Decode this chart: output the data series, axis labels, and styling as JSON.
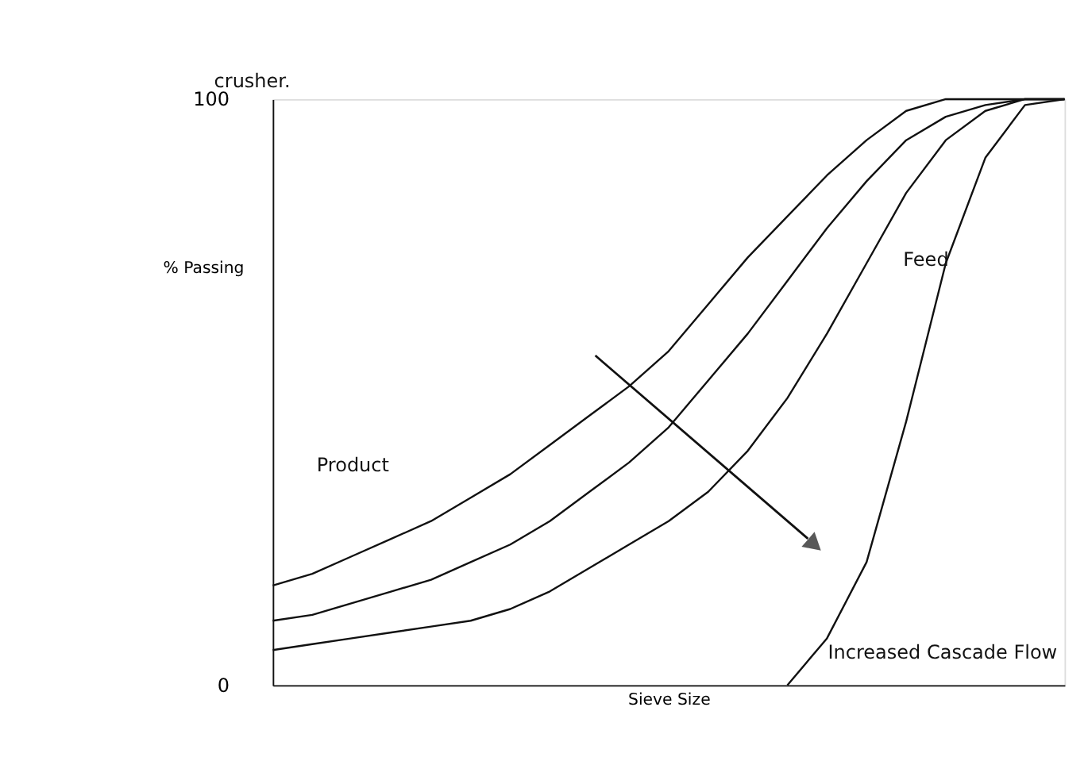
{
  "chart_data": {
    "type": "line",
    "xlabel": "Sieve Size",
    "ylabel": "% Passing",
    "categories": [
      null,
      null,
      null,
      null,
      null,
      null,
      null,
      null,
      null,
      null,
      null,
      null,
      null,
      null,
      null,
      null,
      null,
      null,
      null,
      null,
      null
    ],
    "series": [
      {
        "color": "#111111",
        "values": [
          17,
          19,
          22,
          25,
          28,
          32,
          36,
          41,
          46,
          51,
          57,
          65,
          73,
          80,
          87,
          93,
          98,
          100,
          100,
          100,
          100
        ]
      },
      {
        "color": "#111111",
        "values": [
          11,
          12,
          14,
          16,
          18,
          21,
          24,
          28,
          33,
          38,
          44,
          52,
          60,
          69,
          78,
          86,
          93,
          97,
          99,
          100,
          100
        ]
      },
      {
        "color": "#111111",
        "values": [
          6,
          7,
          8,
          9,
          10,
          11,
          13,
          16,
          20,
          24,
          28,
          33,
          40,
          49,
          60,
          72,
          84,
          93,
          98,
          100,
          100
        ]
      },
      {
        "color": "#111111",
        "values": [
          null,
          null,
          null,
          null,
          null,
          null,
          null,
          null,
          null,
          null,
          null,
          null,
          null,
          0,
          8,
          21,
          45,
          72,
          90,
          99,
          100
        ]
      }
    ],
    "ylim": [
      0,
      100
    ],
    "yticks": [
      0,
      100
    ],
    "tick_labels": "y",
    "grid": false,
    "legend": false,
    "line_style": "solid",
    "annotations": [
      "crusher.",
      "Product",
      "Feed",
      "Increased Cascade Flow"
    ]
  }
}
